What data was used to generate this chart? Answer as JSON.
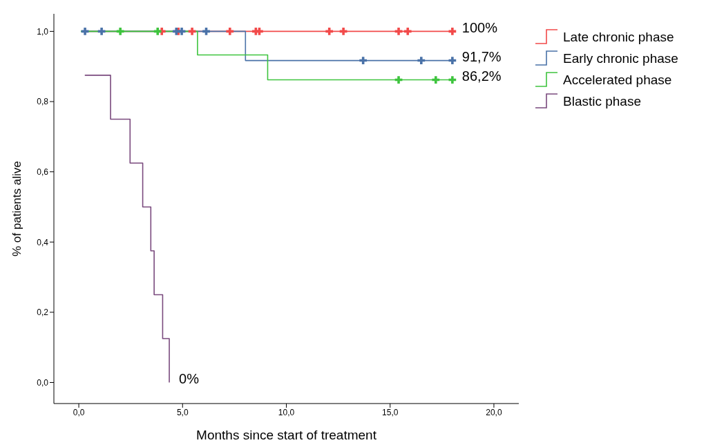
{
  "chart_data": {
    "type": "step",
    "xlabel": "Months since start of treatment",
    "ylabel": "% of patients alive",
    "xlim": [
      -1.2,
      21.2
    ],
    "ylim": [
      -0.06,
      1.05
    ],
    "xticks": [
      {
        "value": 0,
        "label": "0,0"
      },
      {
        "value": 5,
        "label": "5,0"
      },
      {
        "value": 10,
        "label": "10,0"
      },
      {
        "value": 15,
        "label": "15,0"
      },
      {
        "value": 20,
        "label": "20,0"
      }
    ],
    "yticks": [
      {
        "value": 0,
        "label": "0,0"
      },
      {
        "value": 0.2,
        "label": "0,2"
      },
      {
        "value": 0.4,
        "label": "0,4"
      },
      {
        "value": 0.6,
        "label": "0,6"
      },
      {
        "value": 0.8,
        "label": "0,8"
      },
      {
        "value": 1,
        "label": "1,0"
      }
    ],
    "grid": false,
    "legend": "right",
    "line_style": "solid",
    "series": [
      {
        "name": "Late chronic phase",
        "color": "#f24a4a",
        "x": [
          0.13,
          18.0
        ],
        "values": [
          1,
          1
        ]
      },
      {
        "name": "Early chronic phase",
        "color": "#4a72a8",
        "x": [
          0.1,
          8.03,
          18.0
        ],
        "values": [
          1,
          0.917,
          0.917
        ]
      },
      {
        "name": "Accelerated phase",
        "color": "#3ec43e",
        "x": [
          0.1,
          5.72,
          9.1,
          18.0
        ],
        "values": [
          1,
          0.933,
          0.862,
          0.862
        ]
      },
      {
        "name": "Blastic phase",
        "color": "#7a4a7e",
        "x": [
          0.29,
          1.53,
          2.47,
          3.08,
          3.47,
          3.63,
          4.04,
          4.36
        ],
        "values": [
          0.875,
          0.75,
          0.625,
          0.5,
          0.375,
          0.25,
          0.125,
          0
        ]
      },
      {
        "type": "scatter",
        "marker": "cross",
        "color": "#f24a4a",
        "x": [
          4.0,
          4.8,
          5.46,
          7.28,
          8.53,
          8.7,
          12.07,
          12.75,
          15.41,
          15.85,
          18.0
        ],
        "values": [
          1,
          1,
          1,
          1,
          1,
          1,
          1,
          1,
          1,
          1,
          1
        ]
      },
      {
        "type": "scatter",
        "marker": "cross",
        "color": "#4a72a8",
        "x": [
          0.3,
          1.1,
          4.7,
          4.96,
          6.14,
          13.7,
          16.5,
          18.0
        ],
        "values": [
          1,
          1,
          1,
          1,
          1,
          0.917,
          0.917,
          0.917
        ]
      },
      {
        "type": "scatter",
        "marker": "cross",
        "color": "#3ec43e",
        "x": [
          2.0,
          3.8,
          15.41,
          17.2,
          18.0
        ],
        "values": [
          1,
          1,
          0.862,
          0.862,
          0.862
        ]
      }
    ],
    "annotations": [
      "100%",
      "91,7%",
      "86,2%",
      "0%"
    ]
  }
}
